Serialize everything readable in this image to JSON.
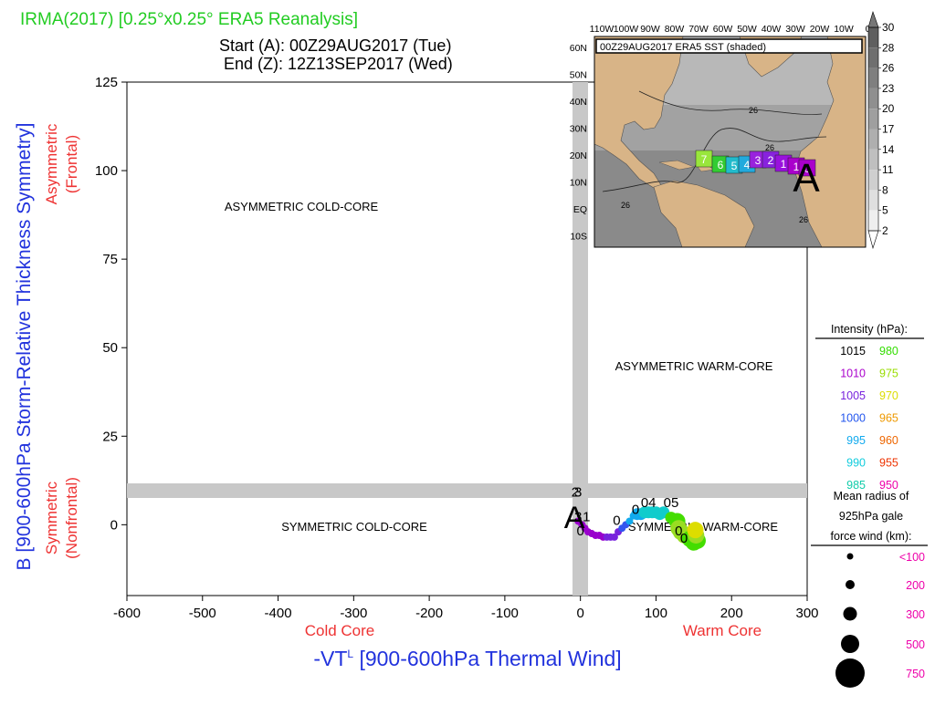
{
  "header": {
    "title": "IRMA(2017) [0.25°x0.25° ERA5 Reanalysis]",
    "start": "Start (A): 00Z29AUG2017 (Tue)",
    "end": "End (Z): 12Z13SEP2017 (Wed)"
  },
  "labels": {
    "ylabel": "B [900-600hPa Storm-Relative Thickness Symmetry]",
    "xlabel_main": "-VT",
    "xlabel_sup": "L",
    "xlabel_rest": " [900-600hPa Thermal Wind]",
    "asym_label": "Asymmetric",
    "asym_sub": "(Frontal)",
    "sym_label": "Symmetric",
    "sym_sub": "(Nonfrontal)",
    "cold_core": "Cold Core",
    "warm_core": "Warm Core"
  },
  "quadrants": {
    "asym_cold": "ASYMMETRIC COLD-CORE",
    "asym_warm": "ASYMMETRIC WARM-CORE",
    "sym_cold": "SYMMETRIC COLD-CORE",
    "sym_warm": "SYMMETRIC WARM-CORE"
  },
  "inset": {
    "title": "00Z29AUG2017 ERA5 SST (shaded)",
    "lon_labels": [
      "110W",
      "100W",
      "90W",
      "80W",
      "70W",
      "60W",
      "50W",
      "40W",
      "30W",
      "20W",
      "10W",
      "0"
    ],
    "lat_labels": [
      "60N",
      "50N",
      "40N",
      "30N",
      "20N",
      "10N",
      "EQ",
      "10S"
    ],
    "sst_contour_label": "26",
    "colorbar_ticks": [
      "30",
      "28",
      "26",
      "23",
      "20",
      "17",
      "14",
      "11",
      "8",
      "5",
      "2"
    ],
    "track_boxes": [
      "7",
      "6",
      "5",
      "4",
      "3",
      "2",
      "1",
      "1",
      "0"
    ],
    "track_box_colors": [
      "#99e63c",
      "#33cc33",
      "#22bbcc",
      "#22aadd",
      "#9922dd",
      "#8822dd",
      "#9911dd",
      "#aa00cc",
      "#aa00cc"
    ],
    "start_marker": "A"
  },
  "legend": {
    "intensity_title": "Intensity (hPa):",
    "intensity": [
      {
        "left": "1015",
        "left_color": "#000000",
        "right": "980",
        "right_color": "#33dd00"
      },
      {
        "left": "1010",
        "left_color": "#aa00cc",
        "right": "975",
        "right_color": "#99dd00"
      },
      {
        "left": "1005",
        "left_color": "#7722dd",
        "right": "970",
        "right_color": "#dddd00"
      },
      {
        "left": "1000",
        "left_color": "#2255ee",
        "right": "965",
        "right_color": "#ee9900"
      },
      {
        "left": "995",
        "left_color": "#11aaee",
        "right": "960",
        "right_color": "#ee6600"
      },
      {
        "left": "990",
        "left_color": "#11ccdd",
        "right": "955",
        "right_color": "#ee3300"
      },
      {
        "left": "985",
        "left_color": "#11ccaa",
        "right": "950",
        "right_color": "#ee00aa"
      }
    ],
    "radius_title": [
      "Mean radius of",
      "925hPa gale",
      "force wind (km):"
    ],
    "radius": [
      "<100",
      "200",
      "300",
      "500",
      "750"
    ],
    "radius_color": "#ee00aa"
  },
  "chart_data": {
    "type": "scatter",
    "xlabel": "-VTL [900-600hPa Thermal Wind]",
    "ylabel": "B [900-600hPa Storm-Relative Thickness Symmetry]",
    "xlim": [
      -600,
      300
    ],
    "ylim": [
      -20,
      125
    ],
    "x_ticks": [
      -600,
      -500,
      -400,
      -300,
      -200,
      -100,
      0,
      100,
      200,
      300
    ],
    "y_ticks": [
      0,
      25,
      50,
      75,
      100,
      125
    ],
    "grid": false,
    "legend_position": "right",
    "start_label": "A",
    "track": [
      {
        "x": -3,
        "y": 1,
        "p": 1008,
        "r": 150
      },
      {
        "x": 2,
        "y": 0,
        "p": 1008,
        "r": 150
      },
      {
        "x": 6,
        "y": -1,
        "p": 1008,
        "r": 150
      },
      {
        "x": 10,
        "y": -2,
        "p": 1007,
        "r": 150
      },
      {
        "x": 15,
        "y": -2.5,
        "p": 1007,
        "r": 150
      },
      {
        "x": 20,
        "y": -3,
        "p": 1007,
        "r": 150
      },
      {
        "x": 25,
        "y": -3,
        "p": 1006,
        "r": 150
      },
      {
        "x": 30,
        "y": -3.5,
        "p": 1006,
        "r": 150
      },
      {
        "x": 35,
        "y": -3.5,
        "p": 1005,
        "r": 150
      },
      {
        "x": 40,
        "y": -3.5,
        "p": 1004,
        "r": 150
      },
      {
        "x": 45,
        "y": -3.5,
        "p": 1003,
        "r": 180
      },
      {
        "x": 50,
        "y": -2,
        "p": 1002,
        "r": 180
      },
      {
        "x": 55,
        "y": -1,
        "p": 1000,
        "r": 180
      },
      {
        "x": 60,
        "y": 0,
        "p": 998,
        "r": 180
      },
      {
        "x": 65,
        "y": 1,
        "p": 996,
        "r": 180
      },
      {
        "x": 70,
        "y": 2.5,
        "p": 995,
        "r": 180
      },
      {
        "x": 75,
        "y": 3,
        "p": 994,
        "r": 200
      },
      {
        "x": 80,
        "y": 3,
        "p": 993,
        "r": 200
      },
      {
        "x": 85,
        "y": 3.5,
        "p": 992,
        "r": 200
      },
      {
        "x": 90,
        "y": 3.5,
        "p": 991,
        "r": 200
      },
      {
        "x": 95,
        "y": 3.5,
        "p": 990,
        "r": 220
      },
      {
        "x": 100,
        "y": 3.5,
        "p": 990,
        "r": 220
      },
      {
        "x": 105,
        "y": 3,
        "p": 989,
        "r": 220
      },
      {
        "x": 110,
        "y": 3.5,
        "p": 988,
        "r": 220
      },
      {
        "x": 120,
        "y": 2,
        "p": 982,
        "r": 260
      },
      {
        "x": 128,
        "y": 1,
        "p": 978,
        "r": 300
      },
      {
        "x": 130,
        "y": -1,
        "p": 976,
        "r": 300
      },
      {
        "x": 133,
        "y": -2,
        "p": 975,
        "r": 320
      },
      {
        "x": 138,
        "y": -3,
        "p": 977,
        "r": 320
      },
      {
        "x": 145,
        "y": -4,
        "p": 980,
        "r": 340
      },
      {
        "x": 150,
        "y": -5,
        "p": 982,
        "r": 340
      },
      {
        "x": 155,
        "y": -4.5,
        "p": 980,
        "r": 360
      },
      {
        "x": 153,
        "y": -3,
        "p": 975,
        "r": 320
      },
      {
        "x": 152,
        "y": -1.5,
        "p": 970,
        "r": 300
      }
    ],
    "time_labels": [
      {
        "text": "2",
        "x": -7,
        "y": 8
      },
      {
        "text": "3",
        "x": -3,
        "y": 8
      },
      {
        "text": "3",
        "x": -3,
        "y": 1
      },
      {
        "text": "1",
        "x": 8,
        "y": 1
      },
      {
        "text": "0",
        "x": 0,
        "y": -3
      },
      {
        "text": "0",
        "x": 48,
        "y": 0
      },
      {
        "text": "0",
        "x": 73,
        "y": 3
      },
      {
        "text": "04",
        "x": 90,
        "y": 5
      },
      {
        "text": "05",
        "x": 120,
        "y": 5
      },
      {
        "text": "0",
        "x": 130,
        "y": -3
      },
      {
        "text": "0",
        "x": 137,
        "y": -5
      }
    ]
  }
}
